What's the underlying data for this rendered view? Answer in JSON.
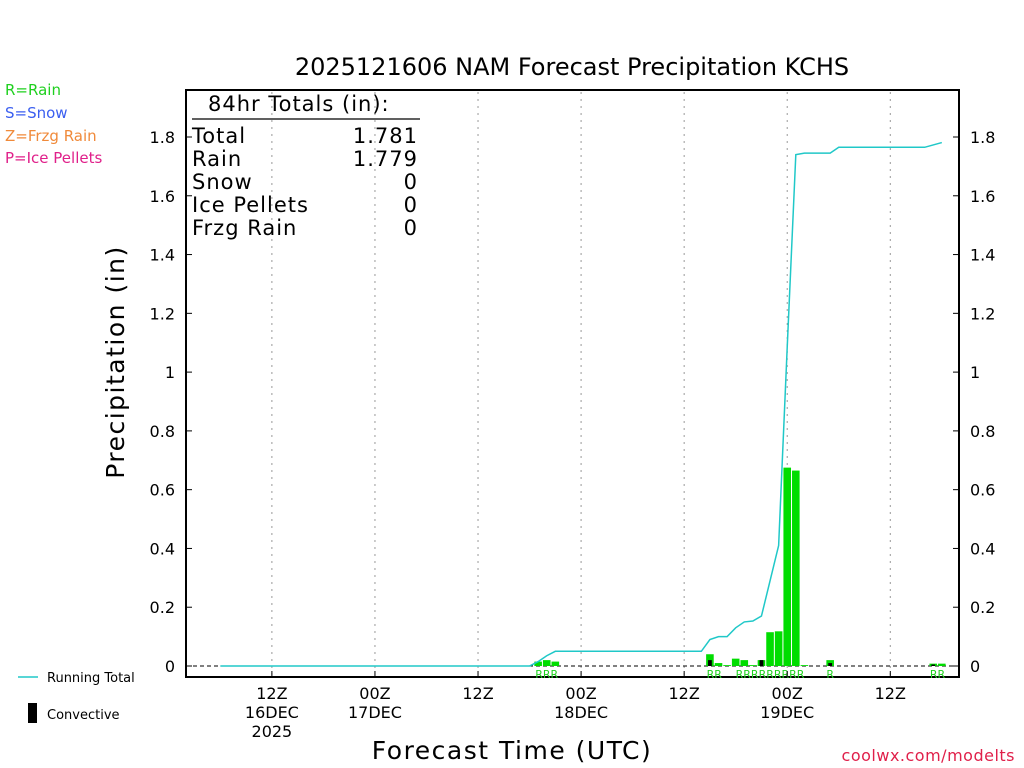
{
  "chart_data": {
    "type": "bar",
    "title": "2025121606 NAM Forecast Precipitation KCHS",
    "xlabel": "Forecast Time (UTC)",
    "ylabel": "Precipitation (in)",
    "ylim": [
      0,
      1.9
    ],
    "yticks": [
      0,
      0.2,
      0.4,
      0.6,
      0.8,
      1,
      1.2,
      1.4,
      1.6,
      1.8
    ],
    "ytick_labels": [
      "0",
      "0.2",
      "0.4",
      "0.6",
      "0.8",
      "1",
      "1.2",
      "1.4",
      "1.6",
      "1.8"
    ],
    "xlim_hours": [
      -4,
      86
    ],
    "x_ticks": [
      {
        "hour": 6,
        "lines": [
          "12Z",
          "16DEC",
          "2025"
        ]
      },
      {
        "hour": 18,
        "lines": [
          "00Z",
          "17DEC"
        ]
      },
      {
        "hour": 30,
        "lines": [
          "12Z"
        ]
      },
      {
        "hour": 42,
        "lines": [
          "00Z",
          "18DEC"
        ]
      },
      {
        "hour": 54,
        "lines": [
          "12Z"
        ]
      },
      {
        "hour": 66,
        "lines": [
          "00Z",
          "19DEC"
        ]
      },
      {
        "hour": 78,
        "lines": [
          "12Z"
        ]
      }
    ],
    "totals_box": {
      "header": "84hr Totals (in):",
      "rows": [
        {
          "label": "Total",
          "value": "1.781"
        },
        {
          "label": "Rain",
          "value": "1.779"
        },
        {
          "label": "Snow",
          "value": "0"
        },
        {
          "label": "Ice Pellets",
          "value": "0"
        },
        {
          "label": "Frzg Rain",
          "value": "0"
        }
      ]
    },
    "precip_type_legend": [
      {
        "text": "R=Rain",
        "color": "#1fd01f"
      },
      {
        "text": "S=Snow",
        "color": "#3a5ef0"
      },
      {
        "text": "Z=Frzg Rain",
        "color": "#f08a3a"
      },
      {
        "text": "P=Ice Pellets",
        "color": "#e0208a"
      }
    ],
    "series_legend": {
      "running_total": "Running Total",
      "convective": "Convective"
    },
    "colors": {
      "rain_bar": "#00dd00",
      "running_total": "#20c8c8",
      "convective": "#000000",
      "rain_label": "#1fd01f"
    },
    "bars": [
      {
        "hour": 37,
        "value": 0.015,
        "convective": 0
      },
      {
        "hour": 38,
        "value": 0.02,
        "convective": 0
      },
      {
        "hour": 39,
        "value": 0.015,
        "convective": 0
      },
      {
        "hour": 57,
        "value": 0.04,
        "convective": 0.02
      },
      {
        "hour": 58,
        "value": 0.01,
        "convective": 0
      },
      {
        "hour": 59,
        "value": 0.003,
        "convective": 0
      },
      {
        "hour": 60,
        "value": 0.025,
        "convective": 0
      },
      {
        "hour": 61,
        "value": 0.02,
        "convective": 0
      },
      {
        "hour": 62,
        "value": 0.003,
        "convective": 0
      },
      {
        "hour": 63,
        "value": 0.02,
        "convective": 0.02
      },
      {
        "hour": 64,
        "value": 0.115,
        "convective": 0
      },
      {
        "hour": 65,
        "value": 0.118,
        "convective": 0
      },
      {
        "hour": 66,
        "value": 0.675,
        "convective": 0
      },
      {
        "hour": 67,
        "value": 0.665,
        "convective": 0
      },
      {
        "hour": 68,
        "value": 0.003,
        "convective": 0
      },
      {
        "hour": 71,
        "value": 0.02,
        "convective": 0.01
      },
      {
        "hour": 83,
        "value": 0.008,
        "convective": 0.005
      },
      {
        "hour": 84,
        "value": 0.008,
        "convective": 0
      }
    ],
    "running_total": {
      "x": [
        0,
        36,
        37,
        38,
        39,
        42,
        48,
        54,
        56,
        57,
        58,
        59,
        60,
        61,
        62,
        63,
        64,
        65,
        66,
        67,
        68,
        69,
        71,
        72,
        82,
        83,
        84
      ],
      "y": [
        0,
        0,
        0.015,
        0.035,
        0.05,
        0.05,
        0.05,
        0.05,
        0.05,
        0.09,
        0.1,
        0.1,
        0.13,
        0.15,
        0.153,
        0.17,
        0.29,
        0.41,
        1.085,
        1.74,
        1.745,
        1.745,
        1.745,
        1.765,
        1.765,
        1.773,
        1.781
      ]
    },
    "ptype_labels": [
      {
        "hour": 38,
        "text": "RRR"
      },
      {
        "hour": 57.5,
        "text": "RR"
      },
      {
        "hour": 64,
        "text": "RRRRRRRRR"
      },
      {
        "hour": 71,
        "text": "R"
      },
      {
        "hour": 83.5,
        "text": "RR"
      }
    ]
  },
  "credit": "coolwx.com/modelts"
}
